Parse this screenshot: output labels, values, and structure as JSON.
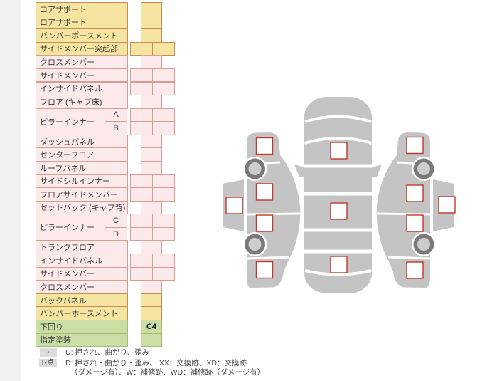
{
  "table": {
    "rows": [
      {
        "label": "コアサポート",
        "theme": "yellow",
        "cells": "single"
      },
      {
        "label": "ロアサポート",
        "theme": "yellow",
        "cells": "single"
      },
      {
        "label": "バンパーポースメント",
        "theme": "yellow",
        "cells": "single"
      },
      {
        "label": "サイドメンバー突起部",
        "theme": "yellow",
        "cells": "double"
      },
      {
        "label": "クロスメンバー",
        "theme": "pink",
        "cells": "single"
      },
      {
        "label": "サイドメンバー",
        "theme": "pink",
        "cells": "double"
      },
      {
        "label": "インサイドパネル",
        "theme": "pink",
        "cells": "double"
      },
      {
        "label": "フロア (キャブ床)",
        "theme": "pink",
        "cells": "single"
      },
      {
        "label": "ピラーインナー",
        "label_span": 2,
        "sub": "A",
        "theme": "pink",
        "cells": "double"
      },
      {
        "sub": "B",
        "theme": "pink",
        "cells": "double"
      },
      {
        "label": "ダッシュパネル",
        "theme": "pink",
        "cells": "single"
      },
      {
        "label": "センターフロア",
        "theme": "pink",
        "cells": "single"
      },
      {
        "label": "ルーフパネル",
        "theme": "pink",
        "cells": "single"
      },
      {
        "label": "サイドシルインナー",
        "theme": "pink",
        "cells": "double"
      },
      {
        "label": "フロアサイドメンバー",
        "theme": "pink",
        "cells": "double"
      },
      {
        "label": "セットバック (キャブ背)",
        "theme": "pink",
        "cells": "single"
      },
      {
        "label": "ピラーインナー",
        "label_span": 2,
        "sub": "C",
        "theme": "pink",
        "cells": "double"
      },
      {
        "sub": "D",
        "theme": "pink",
        "cells": "double"
      },
      {
        "label": "トランクフロア",
        "theme": "pink",
        "cells": "single"
      },
      {
        "label": "インサイドパネル",
        "theme": "pink",
        "cells": "double"
      },
      {
        "label": "サイドメンバー",
        "theme": "pink",
        "cells": "double"
      },
      {
        "label": "クロスメンバー",
        "theme": "pink",
        "cells": "single"
      },
      {
        "label": "バックパネル",
        "theme": "yellow",
        "cells": "single"
      },
      {
        "label": "バンパーホースメント",
        "theme": "yellow",
        "cells": "single"
      },
      {
        "label": "下回り",
        "theme": "green",
        "cells": "single",
        "value": "C4"
      },
      {
        "label": "指定塗装",
        "theme": "green",
        "cells": "single"
      }
    ]
  },
  "legend": {
    "row1_box": "-",
    "row1_text": "U: 押され、曲がり、歪み",
    "row2_box": "R点",
    "row2_text_line1": "D: 押され・曲がり・歪み、 XX：交換跡、XD：交換跡",
    "row2_text_line2": "（ダメージ有）、W：補修跡、WD：補修跡（ダメージ有）"
  },
  "colors": {
    "yellow_fill": "#f6e5a0",
    "yellow_border": "#c98b55",
    "pink_fill": "#fceaea",
    "pink_border": "#d99c98",
    "green_fill": "#cbdfa5",
    "green_border": "#a6bc74",
    "marker_red": "#c0392b",
    "car_gray": "#c4c4c4",
    "wheel_dark": "#7a7a7a",
    "wheel_hub": "#cdcdcd",
    "legend_box_bg": "#dcdcdc"
  },
  "diagram": {
    "marker_count": 13,
    "markers": [
      {
        "zone": "left-door-glass"
      },
      {
        "zone": "left-front-fender"
      },
      {
        "zone": "left-front-door"
      },
      {
        "zone": "left-rear-door"
      },
      {
        "zone": "left-rear-fender"
      },
      {
        "zone": "top-windshield"
      },
      {
        "zone": "top-roof-center"
      },
      {
        "zone": "top-trunk"
      },
      {
        "zone": "right-front-fender"
      },
      {
        "zone": "right-front-door"
      },
      {
        "zone": "right-rear-door"
      },
      {
        "zone": "right-rear-fender"
      },
      {
        "zone": "right-door-glass"
      }
    ]
  }
}
